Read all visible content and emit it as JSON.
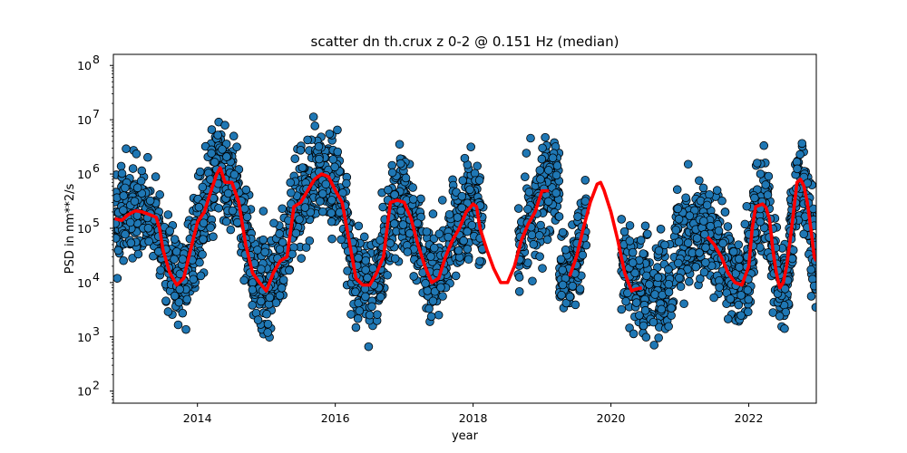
{
  "chart_data": {
    "type": "scatter",
    "title": "scatter dn th.crux z 0-2 @ 0.151 Hz (median)",
    "xlabel": "year",
    "ylabel": "PSD in nm**2/s",
    "xlim": [
      2012.78,
      2022.98
    ],
    "ylim": [
      60,
      160000000
    ],
    "yscale": "log",
    "grid": false,
    "x_ticks": [
      {
        "value": 2014,
        "label": "2014"
      },
      {
        "value": 2016,
        "label": "2016"
      },
      {
        "value": 2018,
        "label": "2018"
      },
      {
        "value": 2020,
        "label": "2020"
      },
      {
        "value": 2022,
        "label": "2022"
      }
    ],
    "y_ticks": [
      {
        "value": 100,
        "base": "10",
        "exp": "2"
      },
      {
        "value": 1000,
        "base": "10",
        "exp": "3"
      },
      {
        "value": 10000,
        "base": "10",
        "exp": "4"
      },
      {
        "value": 100000,
        "base": "10",
        "exp": "5"
      },
      {
        "value": 1000000,
        "base": "10",
        "exp": "6"
      },
      {
        "value": 10000000,
        "base": "10",
        "exp": "7"
      },
      {
        "value": 100000000,
        "base": "10",
        "exp": "8"
      }
    ],
    "colors": {
      "scatter_fill": "#1f77b4",
      "scatter_edge": "#000000",
      "median_line": "#ff0000"
    },
    "data_segments": [
      [
        2012.8,
        2018.15
      ],
      [
        2018.65,
        2019.65
      ],
      [
        2020.15,
        2022.98
      ]
    ],
    "median_series": [
      [
        2012.8,
        150000
      ],
      [
        2012.9,
        140000
      ],
      [
        2013.0,
        180000
      ],
      [
        2013.1,
        210000
      ],
      [
        2013.2,
        200000
      ],
      [
        2013.3,
        180000
      ],
      [
        2013.4,
        160000
      ],
      [
        2013.45,
        100000
      ],
      [
        2013.5,
        40000
      ],
      [
        2013.6,
        15000
      ],
      [
        2013.7,
        9000
      ],
      [
        2013.8,
        12000
      ],
      [
        2013.9,
        40000
      ],
      [
        2014.0,
        130000
      ],
      [
        2014.1,
        200000
      ],
      [
        2014.2,
        500000
      ],
      [
        2014.28,
        1000000
      ],
      [
        2014.33,
        1300000
      ],
      [
        2014.4,
        700000
      ],
      [
        2014.5,
        700000
      ],
      [
        2014.6,
        300000
      ],
      [
        2014.7,
        50000
      ],
      [
        2014.8,
        15000
      ],
      [
        2014.9,
        10000
      ],
      [
        2015.0,
        7000
      ],
      [
        2015.1,
        15000
      ],
      [
        2015.2,
        25000
      ],
      [
        2015.3,
        30000
      ],
      [
        2015.4,
        250000
      ],
      [
        2015.5,
        300000
      ],
      [
        2015.6,
        500000
      ],
      [
        2015.7,
        800000
      ],
      [
        2015.8,
        1000000
      ],
      [
        2015.9,
        900000
      ],
      [
        2016.0,
        500000
      ],
      [
        2016.1,
        300000
      ],
      [
        2016.2,
        60000
      ],
      [
        2016.3,
        12000
      ],
      [
        2016.4,
        9000
      ],
      [
        2016.5,
        9000
      ],
      [
        2016.6,
        15000
      ],
      [
        2016.7,
        30000
      ],
      [
        2016.8,
        300000
      ],
      [
        2016.9,
        330000
      ],
      [
        2017.0,
        300000
      ],
      [
        2017.1,
        150000
      ],
      [
        2017.2,
        50000
      ],
      [
        2017.3,
        20000
      ],
      [
        2017.4,
        10000
      ],
      [
        2017.5,
        12000
      ],
      [
        2017.6,
        30000
      ],
      [
        2017.7,
        60000
      ],
      [
        2017.8,
        100000
      ],
      [
        2017.9,
        200000
      ],
      [
        2018.0,
        280000
      ],
      [
        2018.05,
        250000
      ],
      [
        2018.1,
        100000
      ],
      [
        2018.2,
        40000
      ],
      [
        2018.3,
        18000
      ],
      [
        2018.4,
        10000
      ],
      [
        2018.5,
        10000
      ],
      [
        2018.6,
        20000
      ],
      [
        2018.7,
        60000
      ],
      [
        2018.8,
        120000
      ],
      [
        2018.9,
        200000
      ],
      [
        2019.0,
        490000
      ],
      [
        2019.1,
        490000
      ],
      null,
      [
        2019.4,
        13000
      ],
      [
        2019.5,
        30000
      ],
      [
        2019.6,
        100000
      ],
      [
        2019.7,
        300000
      ],
      [
        2019.8,
        650000
      ],
      [
        2019.85,
        700000
      ],
      [
        2019.9,
        500000
      ],
      [
        2020.0,
        200000
      ],
      [
        2020.1,
        60000
      ],
      [
        2020.2,
        15000
      ],
      [
        2020.3,
        7000
      ],
      [
        2020.35,
        7500
      ],
      [
        2020.45,
        8000
      ],
      null,
      [
        2021.4,
        70000
      ],
      [
        2021.5,
        50000
      ],
      [
        2021.6,
        30000
      ],
      [
        2021.7,
        15000
      ],
      [
        2021.8,
        10000
      ],
      [
        2021.9,
        9000
      ],
      [
        2022.0,
        20000
      ],
      [
        2022.05,
        100000
      ],
      [
        2022.1,
        250000
      ],
      [
        2022.2,
        280000
      ],
      [
        2022.25,
        240000
      ],
      [
        2022.3,
        150000
      ],
      [
        2022.35,
        40000
      ],
      [
        2022.4,
        15000
      ],
      [
        2022.45,
        8000
      ],
      [
        2022.5,
        10000
      ],
      [
        2022.55,
        20000
      ],
      [
        2022.6,
        60000
      ],
      [
        2022.65,
        200000
      ],
      [
        2022.7,
        700000
      ],
      [
        2022.75,
        800000
      ],
      [
        2022.8,
        600000
      ],
      [
        2022.85,
        300000
      ],
      [
        2022.9,
        100000
      ],
      [
        2022.95,
        30000
      ],
      [
        2022.98,
        25000
      ]
    ]
  }
}
